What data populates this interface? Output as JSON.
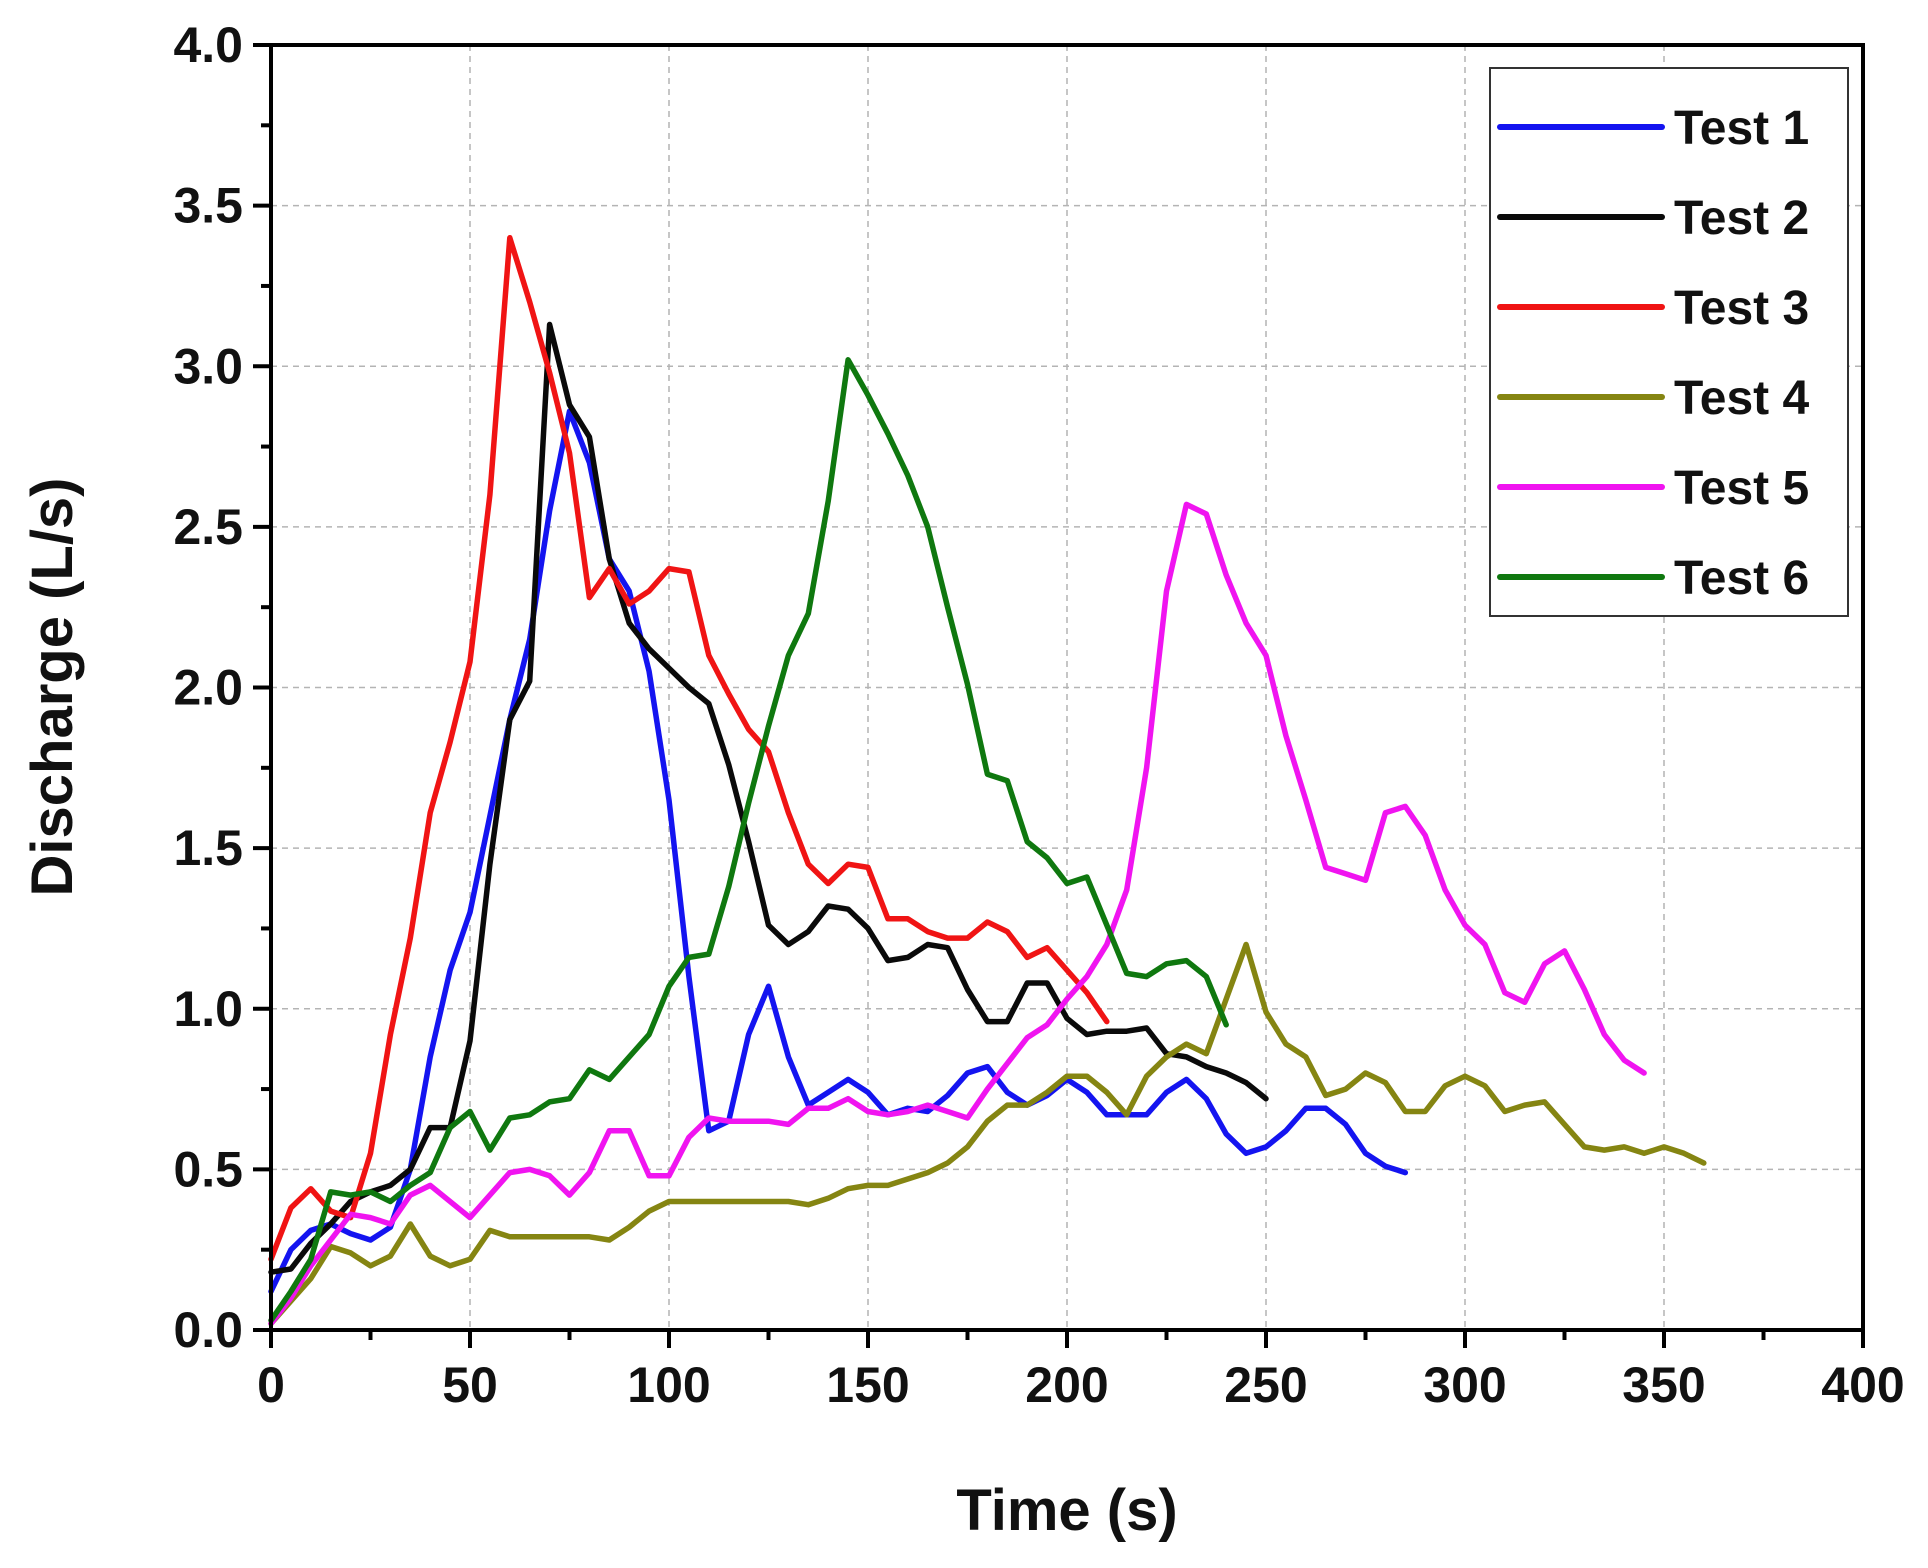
{
  "chart_data": {
    "type": "line",
    "title": "",
    "xlabel": "Time (s)",
    "ylabel": "Discharge (L/s)",
    "xlim": [
      0,
      400
    ],
    "ylim": [
      0,
      4.0
    ],
    "xticks": [
      0,
      50,
      100,
      150,
      200,
      250,
      300,
      350,
      400
    ],
    "xtick_labels": [
      "0",
      "50",
      "100",
      "150",
      "200",
      "250",
      "300",
      "350",
      "400"
    ],
    "yticks": [
      0,
      0.5,
      1.0,
      1.5,
      2.0,
      2.5,
      3.0,
      3.5,
      4.0
    ],
    "ytick_labels": [
      "0.0",
      "0.5",
      "1.0",
      "1.5",
      "2.0",
      "2.5",
      "3.0",
      "3.5",
      "4.0"
    ],
    "grid": true,
    "legend_position": "top-right",
    "series": [
      {
        "name": "Test 1",
        "color": "#1414f0",
        "x": [
          0,
          5,
          10,
          15,
          20,
          25,
          30,
          35,
          40,
          45,
          50,
          55,
          60,
          65,
          70,
          75,
          80,
          85,
          90,
          95,
          100,
          105,
          110,
          115,
          120,
          125,
          130,
          135,
          140,
          145,
          150,
          155,
          160,
          165,
          170,
          175,
          180,
          185,
          190,
          195,
          200,
          205,
          210,
          215,
          220,
          225,
          230,
          235,
          240,
          245,
          250,
          255,
          260,
          265,
          270,
          275,
          280,
          285
        ],
        "y": [
          0.12,
          0.25,
          0.31,
          0.33,
          0.3,
          0.28,
          0.32,
          0.5,
          0.85,
          1.12,
          1.3,
          1.6,
          1.9,
          2.15,
          2.55,
          2.86,
          2.7,
          2.4,
          2.3,
          2.05,
          1.65,
          1.1,
          0.62,
          0.65,
          0.92,
          1.07,
          0.85,
          0.7,
          0.74,
          0.78,
          0.74,
          0.67,
          0.69,
          0.68,
          0.73,
          0.8,
          0.82,
          0.74,
          0.7,
          0.73,
          0.78,
          0.74,
          0.67,
          0.67,
          0.67,
          0.74,
          0.78,
          0.72,
          0.61,
          0.55,
          0.57,
          0.62,
          0.69,
          0.69,
          0.64,
          0.55,
          0.51,
          0.49
        ]
      },
      {
        "name": "Test 2",
        "color": "#0a0a0a",
        "x": [
          0,
          5,
          10,
          15,
          20,
          25,
          30,
          35,
          40,
          45,
          50,
          55,
          60,
          65,
          70,
          75,
          80,
          85,
          90,
          95,
          100,
          105,
          110,
          115,
          120,
          125,
          130,
          135,
          140,
          145,
          150,
          155,
          160,
          165,
          170,
          175,
          180,
          185,
          190,
          195,
          200,
          205,
          210,
          215,
          220,
          225,
          230,
          235,
          240,
          245,
          250
        ],
        "y": [
          0.18,
          0.19,
          0.27,
          0.33,
          0.4,
          0.43,
          0.45,
          0.5,
          0.63,
          0.63,
          0.9,
          1.45,
          1.9,
          2.02,
          3.13,
          2.88,
          2.78,
          2.4,
          2.2,
          2.12,
          2.06,
          2.0,
          1.95,
          1.76,
          1.52,
          1.26,
          1.2,
          1.24,
          1.32,
          1.31,
          1.25,
          1.15,
          1.16,
          1.2,
          1.19,
          1.06,
          0.96,
          0.96,
          1.08,
          1.08,
          0.97,
          0.92,
          0.93,
          0.93,
          0.94,
          0.86,
          0.85,
          0.82,
          0.8,
          0.77,
          0.72
        ]
      },
      {
        "name": "Test 3",
        "color": "#f01414",
        "x": [
          0,
          5,
          10,
          15,
          20,
          25,
          30,
          35,
          40,
          45,
          50,
          55,
          60,
          65,
          70,
          75,
          80,
          85,
          90,
          95,
          100,
          105,
          110,
          115,
          120,
          125,
          130,
          135,
          140,
          145,
          150,
          155,
          160,
          165,
          170,
          175,
          180,
          185,
          190,
          195,
          200,
          205,
          210
        ],
        "y": [
          0.22,
          0.38,
          0.44,
          0.37,
          0.35,
          0.55,
          0.92,
          1.22,
          1.61,
          1.83,
          2.08,
          2.6,
          3.4,
          3.2,
          2.98,
          2.73,
          2.28,
          2.37,
          2.26,
          2.3,
          2.37,
          2.36,
          2.1,
          1.98,
          1.87,
          1.8,
          1.61,
          1.45,
          1.39,
          1.45,
          1.44,
          1.28,
          1.28,
          1.24,
          1.22,
          1.22,
          1.27,
          1.24,
          1.16,
          1.19,
          1.12,
          1.05,
          0.96
        ]
      },
      {
        "name": "Test 4",
        "color": "#858512",
        "x": [
          0,
          5,
          10,
          15,
          20,
          25,
          30,
          35,
          40,
          45,
          50,
          55,
          60,
          65,
          70,
          75,
          80,
          85,
          90,
          95,
          100,
          105,
          110,
          115,
          120,
          125,
          130,
          135,
          140,
          145,
          150,
          155,
          160,
          165,
          170,
          175,
          180,
          185,
          190,
          195,
          200,
          205,
          210,
          215,
          220,
          225,
          230,
          235,
          240,
          245,
          250,
          255,
          260,
          265,
          270,
          275,
          280,
          285,
          290,
          295,
          300,
          305,
          310,
          315,
          320,
          325,
          330,
          335,
          340,
          345,
          350,
          355,
          360
        ],
        "y": [
          0.02,
          0.09,
          0.16,
          0.26,
          0.24,
          0.2,
          0.23,
          0.33,
          0.23,
          0.2,
          0.22,
          0.31,
          0.29,
          0.29,
          0.29,
          0.29,
          0.29,
          0.28,
          0.32,
          0.37,
          0.4,
          0.4,
          0.4,
          0.4,
          0.4,
          0.4,
          0.4,
          0.39,
          0.41,
          0.44,
          0.45,
          0.45,
          0.47,
          0.49,
          0.52,
          0.57,
          0.65,
          0.7,
          0.7,
          0.74,
          0.79,
          0.79,
          0.74,
          0.67,
          0.79,
          0.85,
          0.89,
          0.86,
          1.03,
          1.2,
          0.99,
          0.89,
          0.85,
          0.73,
          0.75,
          0.8,
          0.77,
          0.68,
          0.68,
          0.76,
          0.79,
          0.76,
          0.68,
          0.7,
          0.71,
          0.64,
          0.57,
          0.56,
          0.57,
          0.55,
          0.57,
          0.55,
          0.52
        ]
      },
      {
        "name": "Test 5",
        "color": "#f014f0",
        "x": [
          0,
          5,
          10,
          15,
          20,
          25,
          30,
          35,
          40,
          45,
          50,
          55,
          60,
          65,
          70,
          75,
          80,
          85,
          90,
          95,
          100,
          105,
          110,
          115,
          120,
          125,
          130,
          135,
          140,
          145,
          150,
          155,
          160,
          165,
          170,
          175,
          180,
          185,
          190,
          195,
          200,
          205,
          210,
          215,
          220,
          225,
          230,
          235,
          240,
          245,
          250,
          255,
          260,
          265,
          270,
          275,
          280,
          285,
          290,
          295,
          300,
          305,
          310,
          315,
          320,
          325,
          330,
          335,
          340,
          345
        ],
        "y": [
          0.02,
          0.1,
          0.2,
          0.28,
          0.36,
          0.35,
          0.33,
          0.42,
          0.45,
          0.4,
          0.35,
          0.42,
          0.49,
          0.5,
          0.48,
          0.42,
          0.49,
          0.62,
          0.62,
          0.48,
          0.48,
          0.6,
          0.66,
          0.65,
          0.65,
          0.65,
          0.64,
          0.69,
          0.69,
          0.72,
          0.68,
          0.67,
          0.68,
          0.7,
          0.68,
          0.66,
          0.75,
          0.83,
          0.91,
          0.95,
          1.03,
          1.1,
          1.2,
          1.37,
          1.75,
          2.3,
          2.57,
          2.54,
          2.35,
          2.2,
          2.1,
          1.85,
          1.65,
          1.44,
          1.42,
          1.4,
          1.61,
          1.63,
          1.54,
          1.37,
          1.26,
          1.2,
          1.05,
          1.02,
          1.14,
          1.18,
          1.06,
          0.92,
          0.84,
          0.8
        ]
      },
      {
        "name": "Test 6",
        "color": "#0f780f",
        "x": [
          0,
          5,
          10,
          15,
          20,
          25,
          30,
          35,
          40,
          45,
          50,
          55,
          60,
          65,
          70,
          75,
          80,
          85,
          90,
          95,
          100,
          105,
          110,
          115,
          120,
          125,
          130,
          135,
          140,
          145,
          150,
          155,
          160,
          165,
          170,
          175,
          180,
          185,
          190,
          195,
          200,
          205,
          210,
          215,
          220,
          225,
          230,
          235,
          240
        ],
        "y": [
          0.03,
          0.12,
          0.22,
          0.43,
          0.42,
          0.43,
          0.4,
          0.45,
          0.49,
          0.63,
          0.68,
          0.56,
          0.66,
          0.67,
          0.71,
          0.72,
          0.81,
          0.78,
          0.85,
          0.92,
          1.07,
          1.16,
          1.17,
          1.38,
          1.64,
          1.88,
          2.1,
          2.23,
          2.58,
          3.02,
          2.91,
          2.79,
          2.66,
          2.5,
          2.25,
          2.01,
          1.73,
          1.71,
          1.52,
          1.47,
          1.39,
          1.41,
          1.26,
          1.11,
          1.1,
          1.14,
          1.15,
          1.1,
          0.95
        ]
      }
    ]
  }
}
